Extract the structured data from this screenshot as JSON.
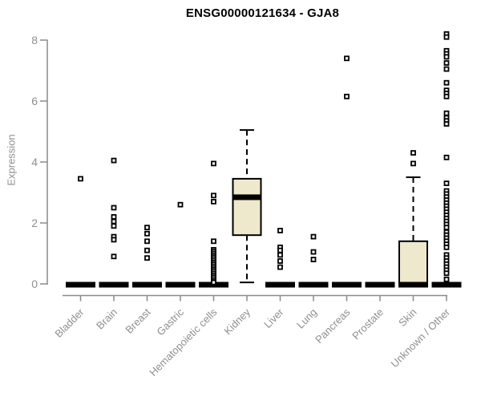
{
  "title": "ENSG00000121634 - GJA8",
  "colors": {
    "box_fill": "#EEE8CC",
    "box_stroke": "#000000",
    "median": "#000000",
    "whisker": "#000000",
    "outlier_stroke": "#000000",
    "outlier_fill": "#FFFFFF",
    "axis": "#8A8A8A",
    "tick_text": "#8F8F8F",
    "title_text": "#000000",
    "background": "#FFFFFF"
  },
  "axes": {
    "y_tick_labels": [
      "0",
      "2",
      "4",
      "6",
      "8"
    ]
  },
  "chart_data": {
    "type": "boxplot",
    "title": "ENSG00000121634 - GJA8",
    "xlabel": "",
    "ylabel": "Expression",
    "ylim": [
      0,
      8.4
    ],
    "yticks": [
      0,
      2,
      4,
      6,
      8
    ],
    "grid": false,
    "legend": "none",
    "categories": [
      "Bladder",
      "Brain",
      "Breast",
      "Gastric",
      "Hematopoietic cells",
      "Kidney",
      "Liver",
      "Lung",
      "Pancreas",
      "Prostate",
      "Skin",
      "Unknown / Other"
    ],
    "series": [
      {
        "category": "Bladder",
        "whisker_low": 0,
        "q1": 0,
        "median": 0,
        "q3": 0,
        "whisker_high": 0,
        "outliers": [
          3.45
        ]
      },
      {
        "category": "Brain",
        "whisker_low": 0,
        "q1": 0,
        "median": 0,
        "q3": 0,
        "whisker_high": 0,
        "outliers": [
          4.05,
          2.5,
          2.2,
          2.05,
          1.9,
          1.55,
          1.45,
          0.9
        ]
      },
      {
        "category": "Breast",
        "whisker_low": 0,
        "q1": 0,
        "median": 0,
        "q3": 0,
        "whisker_high": 0,
        "outliers": [
          1.85,
          1.65,
          1.4,
          1.1,
          0.85
        ]
      },
      {
        "category": "Gastric",
        "whisker_low": 0,
        "q1": 0,
        "median": 0,
        "q3": 0,
        "whisker_high": 0,
        "outliers": [
          2.6
        ]
      },
      {
        "category": "Hematopoietic cells",
        "whisker_low": 0,
        "q1": 0,
        "median": 0,
        "q3": 0,
        "whisker_high": 0,
        "outliers": [
          3.95,
          2.9,
          2.7,
          1.4,
          1.12,
          1.06,
          1.0,
          0.94,
          0.88,
          0.82,
          0.76,
          0.7,
          0.64,
          0.58,
          0.52,
          0.46,
          0.4,
          0.34,
          0.28,
          0.22,
          0.16,
          0.1,
          0.05
        ]
      },
      {
        "category": "Kidney",
        "whisker_low": 0.05,
        "q1": 1.6,
        "median": 2.87,
        "q3": 3.45,
        "whisker_high": 5.05,
        "outliers": []
      },
      {
        "category": "Liver",
        "whisker_low": 0,
        "q1": 0,
        "median": 0,
        "q3": 0,
        "whisker_high": 0,
        "outliers": [
          1.75,
          1.2,
          1.1,
          0.95,
          0.75,
          0.55
        ]
      },
      {
        "category": "Lung",
        "whisker_low": 0,
        "q1": 0,
        "median": 0,
        "q3": 0,
        "whisker_high": 0,
        "outliers": [
          1.55,
          1.05,
          0.8
        ]
      },
      {
        "category": "Pancreas",
        "whisker_low": 0,
        "q1": 0,
        "median": 0,
        "q3": 0,
        "whisker_high": 0,
        "outliers": [
          7.4,
          6.15
        ]
      },
      {
        "category": "Prostate",
        "whisker_low": 0,
        "q1": 0,
        "median": 0,
        "q3": 0,
        "whisker_high": 0,
        "outliers": []
      },
      {
        "category": "Skin",
        "whisker_low": 0,
        "q1": 0,
        "median": 0,
        "q3": 1.4,
        "whisker_high": 3.5,
        "outliers": [
          4.3,
          3.95
        ]
      },
      {
        "category": "Unknown / Other",
        "whisker_low": 0,
        "q1": 0,
        "median": 0,
        "q3": 0,
        "whisker_high": 0,
        "outliers": [
          8.2,
          8.1,
          7.65,
          7.55,
          7.45,
          7.25,
          7.05,
          6.6,
          6.35,
          6.25,
          6.15,
          5.6,
          5.45,
          5.35,
          5.25,
          4.15,
          3.3,
          3.05,
          2.95,
          2.85,
          2.75,
          2.65,
          2.55,
          2.45,
          2.35,
          2.25,
          2.15,
          2.05,
          1.95,
          1.85,
          1.7,
          1.6,
          1.5,
          1.4,
          1.3,
          1.2,
          0.95,
          0.85,
          0.75,
          0.65,
          0.55,
          0.45,
          0.35,
          0.15
        ]
      }
    ]
  }
}
